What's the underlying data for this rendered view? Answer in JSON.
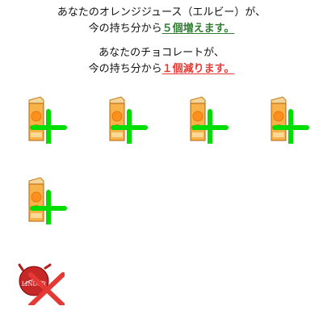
{
  "messages": {
    "orange": {
      "line1": "あなたのオレンジジュース（エルビー）が、",
      "line2_prefix": "今の持ち分から",
      "line2_change": "５個増えます。"
    },
    "chocolate": {
      "line1": "あなたのチョコレートが、",
      "line2_prefix": "今の持ち分から",
      "line2_change": "１個減ります。"
    }
  },
  "items": {
    "juice": {
      "count": 5,
      "icon": "orange-juice-carton-icon",
      "marker": "plus-icon",
      "marker_color": "#00dd00"
    },
    "chocolate": {
      "count": 1,
      "icon": "lindor-chocolate-icon",
      "marker": "x-icon",
      "marker_color": "#e53935",
      "wrapper_text": "LINDOR"
    }
  },
  "colors": {
    "gain": "#2e7d32",
    "loss": "#e53935"
  }
}
